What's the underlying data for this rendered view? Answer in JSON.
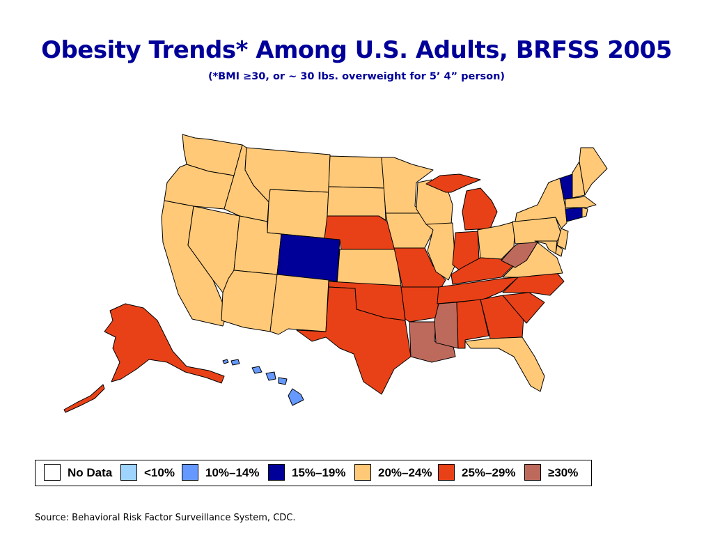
{
  "title": "Obesity Trends* Among U.S. Adults, BRFSS 2005",
  "subtitle": "(*BMI ≥30, or ~ 30 lbs. overweight for 5’ 4” person)",
  "source": "Source: Behavioral Risk Factor Surveillance System, CDC.",
  "legend": [
    {
      "label": "No Data",
      "color": "#ffffff"
    },
    {
      "label": "<10%",
      "color": "#9fd4ff"
    },
    {
      "label": "10%–14%",
      "color": "#6699ff"
    },
    {
      "label": "15%–19%",
      "color": "#000099"
    },
    {
      "label": "20%–24%",
      "color": "#ffc978"
    },
    {
      "label": "25%–29%",
      "color": "#e84118"
    },
    {
      "label": "≥30%",
      "color": "#bd6a5c"
    }
  ],
  "states": {
    "WA": "20%–24%",
    "OR": "20%–24%",
    "CA": "20%–24%",
    "NV": "20%–24%",
    "ID": "20%–24%",
    "MT": "20%–24%",
    "WY": "20%–24%",
    "UT": "20%–24%",
    "AZ": "20%–24%",
    "NM": "20%–24%",
    "CO": "15%–19%",
    "ND": "20%–24%",
    "SD": "20%–24%",
    "NE": "25%–29%",
    "KS": "20%–24%",
    "OK": "25%–29%",
    "TX": "25%–29%",
    "MN": "20%–24%",
    "IA": "20%–24%",
    "MO": "25%–29%",
    "AR": "25%–29%",
    "LA": "≥30%",
    "WI": "20%–24%",
    "IL": "20%–24%",
    "MI": "25%–29%",
    "IN": "25%–29%",
    "OH": "20%–24%",
    "KY": "25%–29%",
    "TN": "25%–29%",
    "MS": "≥30%",
    "AL": "25%–29%",
    "GA": "25%–29%",
    "FL": "20%–24%",
    "SC": "25%–29%",
    "NC": "25%–29%",
    "VA": "20%–24%",
    "WV": "≥30%",
    "PA": "20%–24%",
    "NY": "20%–24%",
    "VT": "15%–19%",
    "NH": "20%–24%",
    "ME": "20%–24%",
    "MA": "20%–24%",
    "CT": "15%–19%",
    "RI": "20%–24%",
    "NJ": "20%–24%",
    "DE": "20%–24%",
    "MD": "20%–24%",
    "AK": "25%–29%",
    "HI": "10%–14%"
  }
}
